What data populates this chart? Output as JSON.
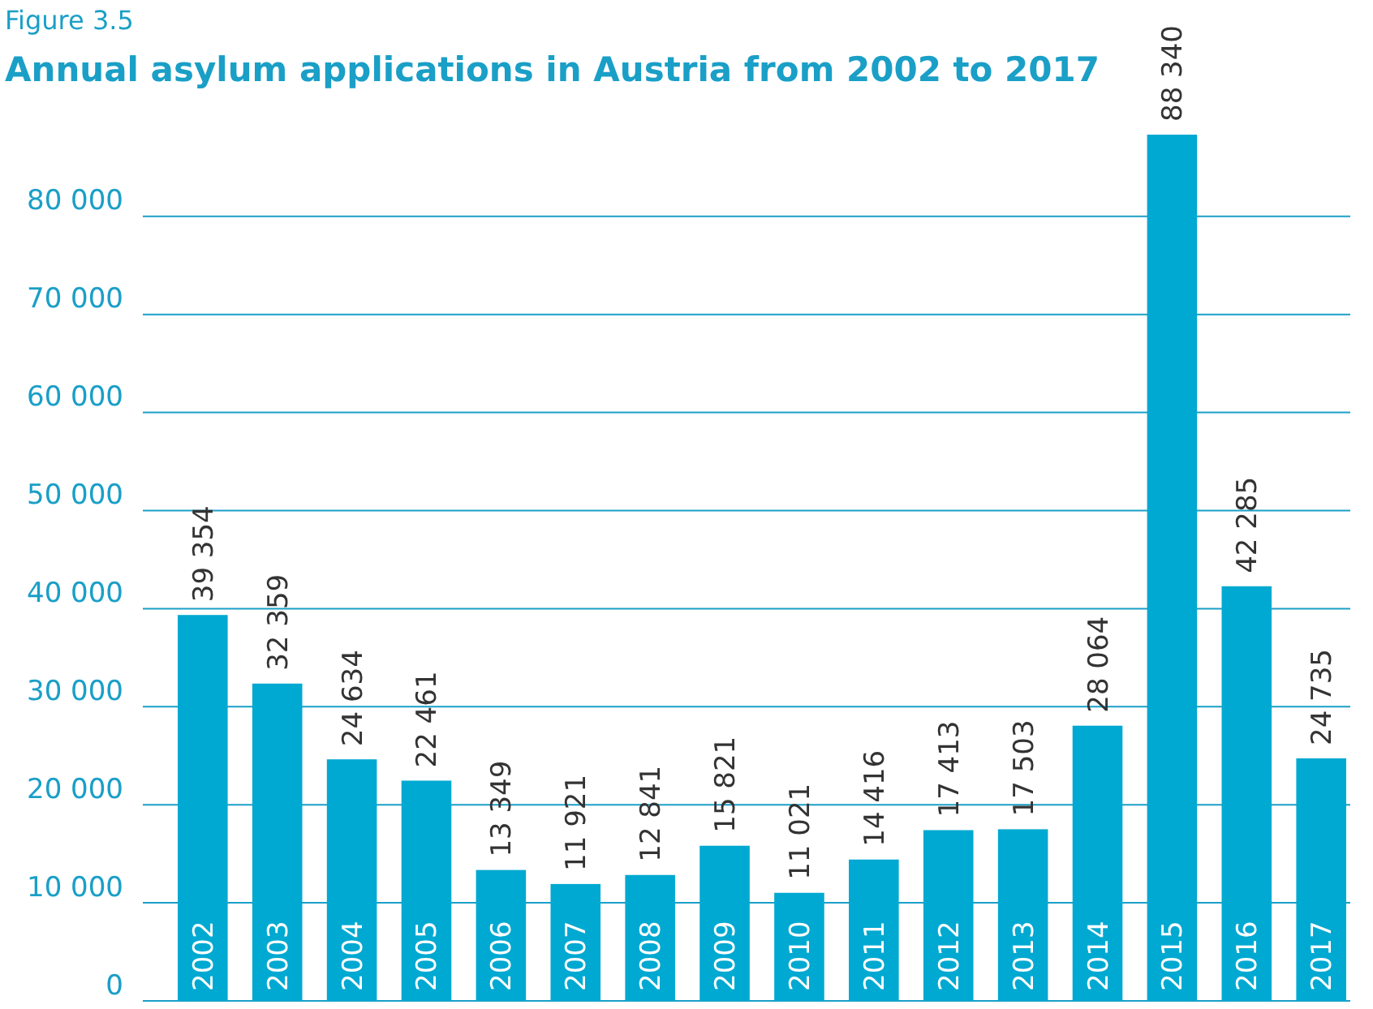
{
  "chart_data": {
    "type": "bar",
    "subtitle": "Figure 3.5",
    "title": "Annual asylum applications in Austria from 2002 to 2017",
    "categories": [
      "2002",
      "2003",
      "2004",
      "2005",
      "2006",
      "2007",
      "2008",
      "2009",
      "2010",
      "2011",
      "2012",
      "2013",
      "2014",
      "2015",
      "2016",
      "2017"
    ],
    "values": [
      39354,
      32359,
      24634,
      22461,
      13349,
      11921,
      12841,
      15821,
      11021,
      14416,
      17413,
      17503,
      28064,
      88340,
      42285,
      24735
    ],
    "value_labels": [
      "39 354",
      "32 359",
      "24 634",
      "22 461",
      "13 349",
      "11 921",
      "12 841",
      "15 821",
      "11 021",
      "14 416",
      "17 413",
      "17 503",
      "28 064",
      "88 340",
      "42 285",
      "24 735"
    ],
    "color": "#00a9d1",
    "ylim": [
      0,
      88340
    ],
    "yticks": [
      0,
      {
        "value": 10000,
        "label": "10 000"
      },
      {
        "value": 20000,
        "label": "20 000"
      },
      {
        "value": 30000,
        "label": "30 000"
      },
      {
        "value": 40000,
        "label": "40 000"
      },
      {
        "value": 50000,
        "label": "50 000"
      },
      {
        "value": 60000,
        "label": "60 000"
      },
      {
        "value": 70000,
        "label": "70 000"
      },
      {
        "value": 80000,
        "label": "80 000"
      }
    ],
    "grid": "y"
  }
}
